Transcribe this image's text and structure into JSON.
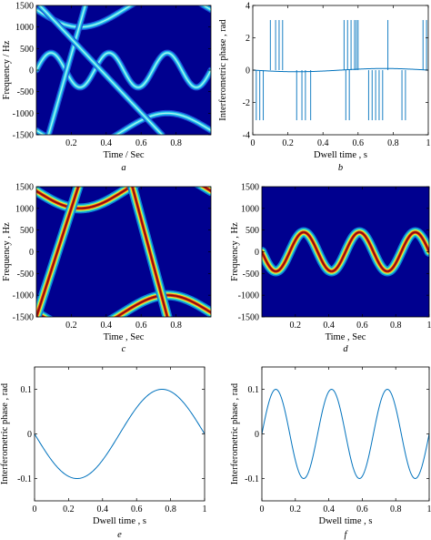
{
  "colors": {
    "line": "#0072bd",
    "spec_bg": "#00008f",
    "axis": "#000000"
  },
  "chart_data": [
    {
      "id": "a",
      "panel_label": "a",
      "type": "heatmap",
      "xlabel": "Time / Sec",
      "ylabel": "Frequency / Hz",
      "xlim": [
        0,
        1
      ],
      "ylim": [
        -1500,
        1500
      ],
      "xticks": [
        0.2,
        0.4,
        0.6,
        0.8
      ],
      "yticks": [
        1500,
        1000,
        500,
        0,
        -500,
        -1000,
        -1500
      ],
      "ridge_style": "cyan-thin",
      "ridges": [
        {
          "kind": "sine",
          "offset": 0,
          "amplitude": 400,
          "freq_hz": 3,
          "phase_deg": 0
        },
        {
          "kind": "sine",
          "offset": -1400,
          "amplitude": 400,
          "freq_hz": 1,
          "phase_deg": 180
        },
        {
          "kind": "sine",
          "offset": 1400,
          "amplitude": 400,
          "freq_hz": 1,
          "phase_deg": 180
        },
        {
          "kind": "linear",
          "points": [
            [
              0.07,
              -1500
            ],
            [
              0.28,
              1500
            ]
          ]
        },
        {
          "kind": "linear",
          "points": [
            [
              0.02,
              1500
            ],
            [
              0.72,
              -1500
            ]
          ]
        }
      ]
    },
    {
      "id": "b",
      "panel_label": "b",
      "type": "line",
      "xlabel": "Dwell time , s",
      "ylabel": "Interferometric phase , rad",
      "xlim": [
        0,
        1
      ],
      "ylim": [
        -4,
        4
      ],
      "xticks": [
        0,
        0.2,
        0.4,
        0.6,
        0.8,
        1
      ],
      "yticks": [
        4,
        2,
        0,
        -2,
        -4
      ],
      "baseline": {
        "amplitude": 0.1,
        "freq_hz": 1,
        "phase_deg": 180
      },
      "spikes_up": [
        0.1,
        0.13,
        0.15,
        0.17,
        0.52,
        0.54,
        0.56,
        0.58,
        0.59,
        0.6,
        0.77,
        0.97,
        0.99
      ],
      "spikes_up_value": 3.1,
      "spikes_down": [
        0.02,
        0.04,
        0.06,
        0.25,
        0.28,
        0.3,
        0.33,
        0.53,
        0.55,
        0.66,
        0.68,
        0.7,
        0.72,
        0.74,
        0.85,
        0.87
      ],
      "spikes_down_value": -3.1
    },
    {
      "id": "c",
      "panel_label": "c",
      "type": "heatmap",
      "xlabel": "Time , Sec",
      "ylabel": "Frequency , Hz",
      "xlim": [
        0,
        1
      ],
      "ylim": [
        -1500,
        1500
      ],
      "xticks": [
        0.2,
        0.4,
        0.6,
        0.8
      ],
      "yticks": [
        1500,
        1000,
        500,
        0,
        -500,
        -1000,
        -1500
      ],
      "ridge_style": "red-thick",
      "ridges": [
        {
          "kind": "sine",
          "offset": -1400,
          "amplitude": 400,
          "freq_hz": 1,
          "phase_deg": 180
        },
        {
          "kind": "sine",
          "offset": 1400,
          "amplitude": 400,
          "freq_hz": 1,
          "phase_deg": 180
        },
        {
          "kind": "linear",
          "points": [
            [
              0.0,
              -1500
            ],
            [
              0.24,
              1500
            ]
          ]
        },
        {
          "kind": "linear",
          "points": [
            [
              0.55,
              1500
            ],
            [
              0.75,
              -1500
            ]
          ]
        }
      ]
    },
    {
      "id": "d",
      "panel_label": "d",
      "type": "heatmap",
      "xlabel": "Time , Sec",
      "ylabel": "Frequency , Hz",
      "xlim": [
        0,
        1
      ],
      "ylim": [
        -1500,
        1500
      ],
      "xticks": [
        0.2,
        0.4,
        0.6,
        0.8,
        1
      ],
      "yticks": [
        1500,
        1000,
        500,
        0,
        -500,
        -1000,
        -1500
      ],
      "ridge_style": "red-thick",
      "ridges": [
        {
          "kind": "sine",
          "offset": 0,
          "amplitude": 450,
          "freq_hz": 3,
          "phase_deg": 180
        }
      ]
    },
    {
      "id": "e",
      "panel_label": "e",
      "type": "line",
      "xlabel": "Dwell time , s",
      "ylabel": "Interferometric phase , rad",
      "xlim": [
        0,
        1
      ],
      "ylim": [
        -0.15,
        0.15
      ],
      "xticks": [
        0,
        0.2,
        0.4,
        0.6,
        0.8,
        1
      ],
      "yticks": [
        0.1,
        0,
        -0.1
      ],
      "series": [
        {
          "amplitude": 0.1,
          "freq_hz": 1,
          "phase_deg": 180
        }
      ]
    },
    {
      "id": "f",
      "panel_label": "f",
      "type": "line",
      "xlabel": "Dwell time , s",
      "ylabel": "Interferometric phase , rad",
      "xlim": [
        0,
        1
      ],
      "ylim": [
        -0.15,
        0.15
      ],
      "xticks": [
        0,
        0.2,
        0.4,
        0.6,
        0.8,
        1
      ],
      "yticks": [
        0.1,
        0,
        -0.1
      ],
      "series": [
        {
          "amplitude": 0.1,
          "freq_hz": 3,
          "phase_deg": 0
        }
      ]
    }
  ]
}
